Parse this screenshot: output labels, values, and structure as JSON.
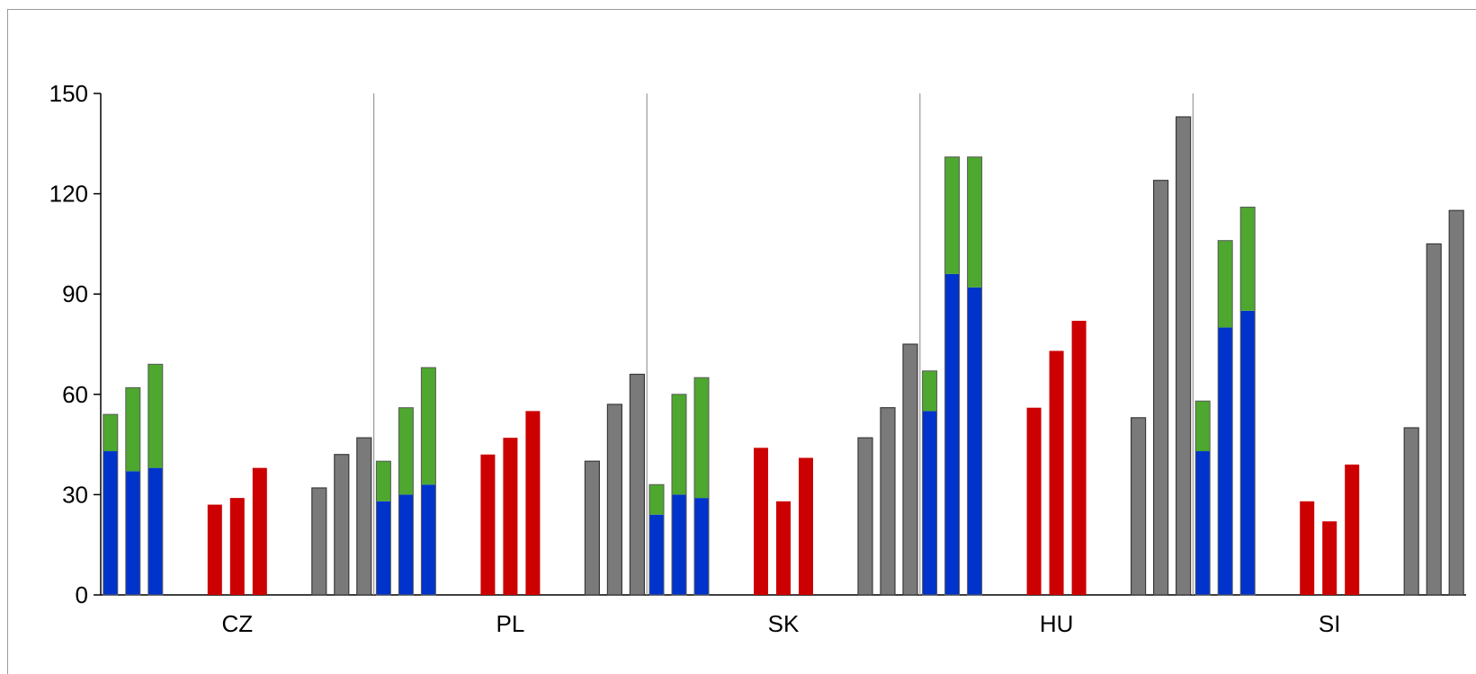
{
  "chart_data": {
    "type": "bar",
    "stacked_groups": true,
    "categories": [
      "CZ",
      "PL",
      "SK",
      "HU",
      "SI"
    ],
    "yticks": [
      0,
      30,
      60,
      90,
      120,
      150
    ],
    "ylim": [
      0,
      150
    ],
    "grid": false,
    "legend": "none",
    "colors": {
      "blue": "#0033cc",
      "green": "#4ea72e",
      "red": "#cc0000",
      "gray": "#7a7a7a",
      "outline": "#3a3a3a",
      "separator": "#9a9a9a"
    },
    "series": [
      {
        "color": "blue",
        "stack": "A",
        "values": [
          [
            43,
            37,
            38
          ],
          [
            28,
            30,
            33
          ],
          [
            24,
            30,
            29
          ],
          [
            55,
            96,
            92
          ],
          [
            43,
            80,
            85
          ]
        ]
      },
      {
        "color": "green",
        "stack": "A",
        "values": [
          [
            11,
            25,
            31
          ],
          [
            12,
            26,
            35
          ],
          [
            9,
            30,
            36
          ],
          [
            12,
            35,
            39
          ],
          [
            15,
            26,
            31
          ]
        ]
      },
      {
        "color": "red",
        "stack": "B",
        "values": [
          [
            27,
            29,
            38
          ],
          [
            42,
            47,
            55
          ],
          [
            44,
            28,
            41
          ],
          [
            56,
            73,
            82
          ],
          [
            28,
            22,
            39
          ]
        ]
      },
      {
        "color": "gray",
        "stack": "C",
        "values": [
          [
            32,
            42,
            47
          ],
          [
            40,
            57,
            66
          ],
          [
            47,
            56,
            75
          ],
          [
            53,
            124,
            143
          ],
          [
            50,
            105,
            115
          ]
        ]
      }
    ]
  }
}
